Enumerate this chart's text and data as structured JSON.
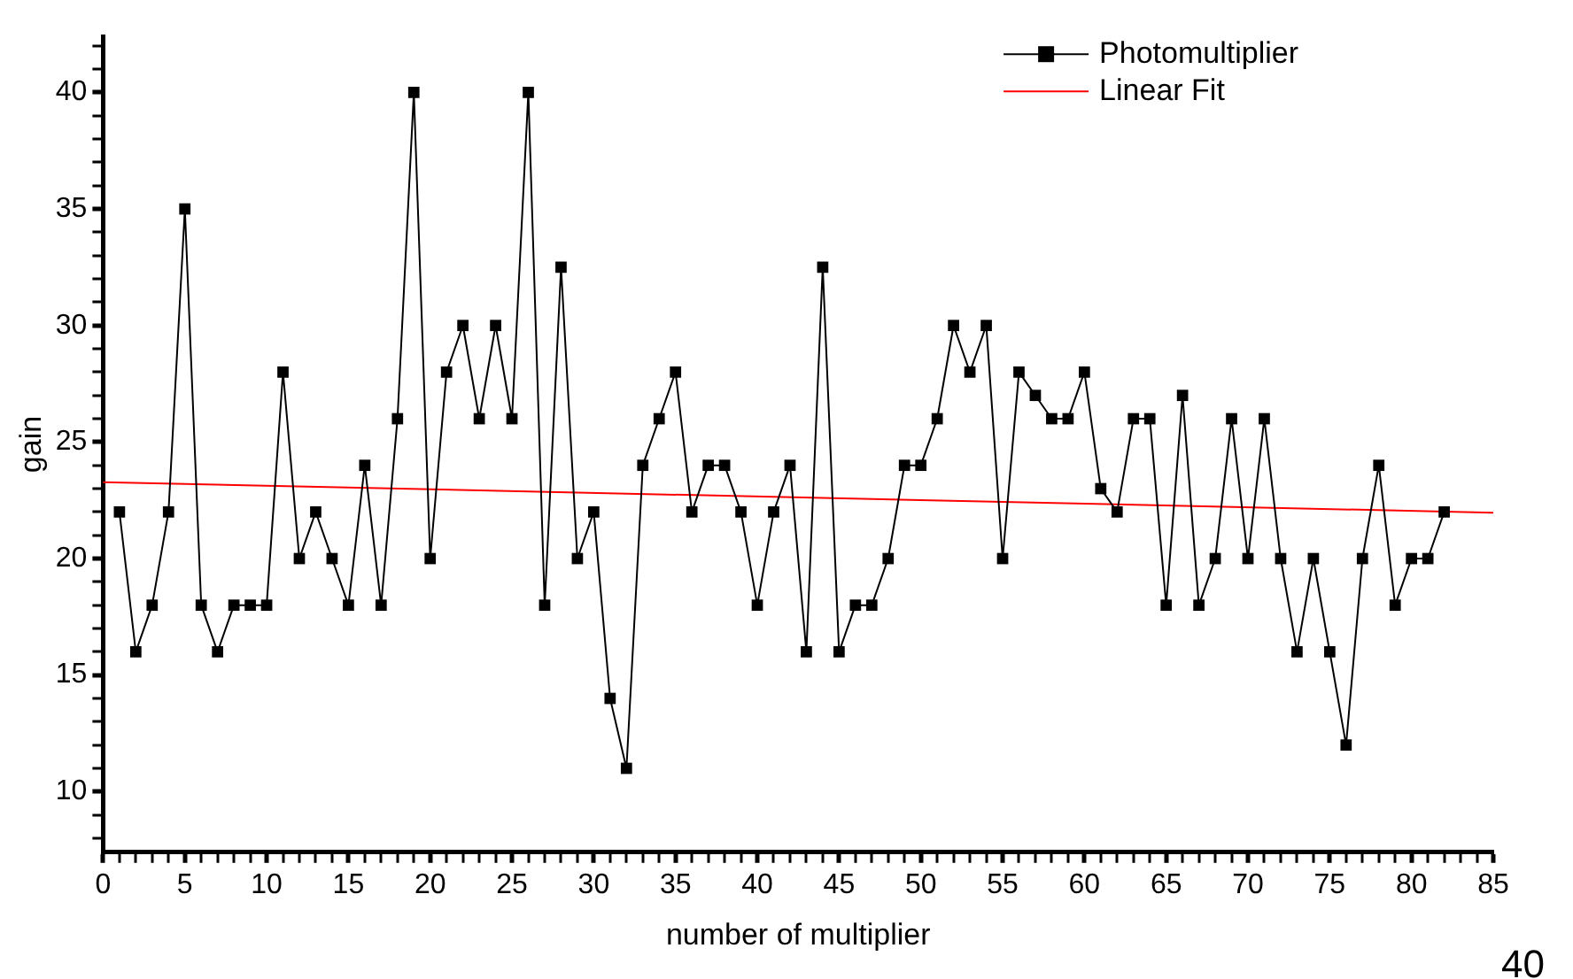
{
  "chart_data": {
    "type": "line",
    "xlabel": "number of multiplier",
    "ylabel": "gain",
    "annotations": [
      "40"
    ],
    "x": [
      1,
      2,
      3,
      4,
      5,
      6,
      7,
      8,
      9,
      10,
      11,
      12,
      13,
      14,
      15,
      16,
      17,
      18,
      19,
      20,
      21,
      22,
      23,
      24,
      25,
      26,
      27,
      28,
      29,
      30,
      31,
      32,
      33,
      34,
      35,
      36,
      37,
      38,
      39,
      40,
      41,
      42,
      43,
      44,
      45,
      46,
      47,
      48,
      49,
      50,
      51,
      52,
      53,
      54,
      55,
      56,
      57,
      58,
      59,
      60,
      61,
      62,
      63,
      64,
      65,
      66,
      67,
      68,
      69,
      70,
      71,
      72,
      73,
      74,
      75,
      76,
      77,
      78,
      79,
      80,
      81,
      82
    ],
    "series": [
      {
        "name": "Photomultiplier",
        "color": "#000000",
        "marker": "square",
        "line_style": "solid",
        "values": [
          22,
          16,
          18,
          22,
          35,
          18,
          16,
          18,
          18,
          18,
          28,
          20,
          22,
          20,
          18,
          24,
          18,
          26,
          40,
          20,
          28,
          30,
          26,
          30,
          26,
          40,
          18,
          32.5,
          20,
          22,
          14,
          11,
          24,
          26,
          28,
          22,
          24,
          24,
          22,
          18,
          22,
          24,
          16,
          32.5,
          16,
          18,
          18,
          20,
          24,
          24,
          26,
          30,
          28,
          30,
          20,
          28,
          27,
          26,
          26,
          28,
          23,
          22,
          26,
          26,
          18,
          27,
          18,
          20,
          26,
          20,
          26,
          20,
          16,
          20,
          16,
          12,
          20,
          24,
          18,
          20,
          20,
          22
        ]
      },
      {
        "name": "Linear Fit",
        "type": "line",
        "color": "#ff0000",
        "marker": "none",
        "line_style": "solid",
        "x": [
          0,
          85
        ],
        "values": [
          23.28,
          21.97
        ]
      }
    ],
    "xlim": [
      0,
      85
    ],
    "xticks": [
      0,
      {
        "value": 1,
        "label": null
      },
      {
        "value": 2,
        "label": null
      },
      {
        "value": 3,
        "label": null
      },
      {
        "value": 4,
        "label": null
      },
      5,
      {
        "value": 6,
        "label": null
      },
      {
        "value": 7,
        "label": null
      },
      {
        "value": 8,
        "label": null
      },
      {
        "value": 9,
        "label": null
      },
      10,
      {
        "value": 11,
        "label": null
      },
      {
        "value": 12,
        "label": null
      },
      {
        "value": 13,
        "label": null
      },
      {
        "value": 14,
        "label": null
      },
      15,
      {
        "value": 16,
        "label": null
      },
      {
        "value": 17,
        "label": null
      },
      {
        "value": 18,
        "label": null
      },
      {
        "value": 19,
        "label": null
      },
      20,
      {
        "value": 21,
        "label": null
      },
      {
        "value": 22,
        "label": null
      },
      {
        "value": 23,
        "label": null
      },
      {
        "value": 24,
        "label": null
      },
      25,
      {
        "value": 26,
        "label": null
      },
      {
        "value": 27,
        "label": null
      },
      {
        "value": 28,
        "label": null
      },
      {
        "value": 29,
        "label": null
      },
      30,
      {
        "value": 31,
        "label": null
      },
      {
        "value": 32,
        "label": null
      },
      {
        "value": 33,
        "label": null
      },
      {
        "value": 34,
        "label": null
      },
      35,
      {
        "value": 36,
        "label": null
      },
      {
        "value": 37,
        "label": null
      },
      {
        "value": 38,
        "label": null
      },
      {
        "value": 39,
        "label": null
      },
      40,
      {
        "value": 41,
        "label": null
      },
      {
        "value": 42,
        "label": null
      },
      {
        "value": 43,
        "label": null
      },
      {
        "value": 44,
        "label": null
      },
      45,
      {
        "value": 46,
        "label": null
      },
      {
        "value": 47,
        "label": null
      },
      {
        "value": 48,
        "label": null
      },
      {
        "value": 49,
        "label": null
      },
      50,
      {
        "value": 51,
        "label": null
      },
      {
        "value": 52,
        "label": null
      },
      {
        "value": 53,
        "label": null
      },
      {
        "value": 54,
        "label": null
      },
      55,
      {
        "value": 56,
        "label": null
      },
      {
        "value": 57,
        "label": null
      },
      {
        "value": 58,
        "label": null
      },
      {
        "value": 59,
        "label": null
      },
      60,
      {
        "value": 61,
        "label": null
      },
      {
        "value": 62,
        "label": null
      },
      {
        "value": 63,
        "label": null
      },
      {
        "value": 64,
        "label": null
      },
      65,
      {
        "value": 66,
        "label": null
      },
      {
        "value": 67,
        "label": null
      },
      {
        "value": 68,
        "label": null
      },
      {
        "value": 69,
        "label": null
      },
      70,
      {
        "value": 71,
        "label": null
      },
      {
        "value": 72,
        "label": null
      },
      {
        "value": 73,
        "label": null
      },
      {
        "value": 74,
        "label": null
      },
      75,
      {
        "value": 76,
        "label": null
      },
      {
        "value": 77,
        "label": null
      },
      {
        "value": 78,
        "label": null
      },
      {
        "value": 79,
        "label": null
      },
      80,
      {
        "value": 81,
        "label": null
      },
      {
        "value": 82,
        "label": null
      },
      {
        "value": 83,
        "label": null
      },
      {
        "value": 84,
        "label": null
      },
      85
    ],
    "ylim": [
      7.4,
      42.4
    ],
    "yticks": [
      {
        "value": 8,
        "label": null
      },
      {
        "value": 9,
        "label": null
      },
      10,
      {
        "value": 11,
        "label": null
      },
      {
        "value": 12,
        "label": null
      },
      {
        "value": 13,
        "label": null
      },
      {
        "value": 14,
        "label": null
      },
      15,
      {
        "value": 16,
        "label": null
      },
      {
        "value": 17,
        "label": null
      },
      {
        "value": 18,
        "label": null
      },
      {
        "value": 19,
        "label": null
      },
      20,
      {
        "value": 21,
        "label": null
      },
      {
        "value": 22,
        "label": null
      },
      {
        "value": 23,
        "label": null
      },
      {
        "value": 24,
        "label": null
      },
      25,
      {
        "value": 26,
        "label": null
      },
      {
        "value": 27,
        "label": null
      },
      {
        "value": 28,
        "label": null
      },
      {
        "value": 29,
        "label": null
      },
      30,
      {
        "value": 31,
        "label": null
      },
      {
        "value": 32,
        "label": null
      },
      {
        "value": 33,
        "label": null
      },
      {
        "value": 34,
        "label": null
      },
      35,
      {
        "value": 36,
        "label": null
      },
      {
        "value": 37,
        "label": null
      },
      {
        "value": 38,
        "label": null
      },
      {
        "value": 39,
        "label": null
      },
      40,
      {
        "value": 41,
        "label": null
      },
      {
        "value": 42,
        "label": null
      }
    ],
    "grid": false,
    "legend": "top right"
  }
}
